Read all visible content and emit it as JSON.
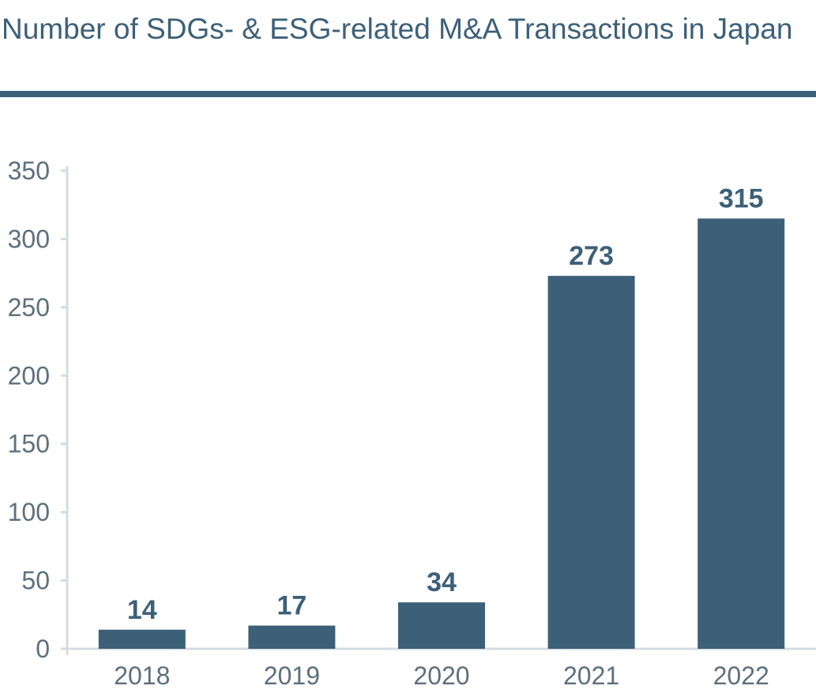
{
  "chart_data": {
    "type": "bar",
    "title": "Number of SDGs- & ESG-related M&A Transactions in Japan",
    "categories": [
      "2018",
      "2019",
      "2020",
      "2021",
      "2022"
    ],
    "values": [
      14,
      17,
      34,
      273,
      315
    ],
    "data_labels": [
      "14",
      "17",
      "34",
      "273",
      "315"
    ],
    "yticks": [
      0,
      50,
      100,
      150,
      200,
      250,
      300,
      350
    ],
    "ytick_labels": [
      "0",
      "50",
      "100",
      "150",
      "200",
      "250",
      "300",
      "350"
    ],
    "ylim": [
      0,
      350
    ],
    "xlabel": "",
    "ylabel": "",
    "grid": false,
    "colors": {
      "bar": "#3d6079",
      "axis": "#d5dbe0",
      "tick_text": "#5e6f7c",
      "title": "#3d6079"
    }
  }
}
